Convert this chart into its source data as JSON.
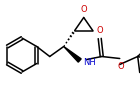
{
  "bg_color": "#ffffff",
  "atom_colors": {
    "C": "#000000",
    "N": "#0000cc",
    "O": "#cc0000"
  },
  "figsize": [
    1.4,
    1.1
  ],
  "dpi": 100,
  "lw": 1.1,
  "xlim": [
    0,
    140
  ],
  "ylim": [
    0,
    110
  ]
}
